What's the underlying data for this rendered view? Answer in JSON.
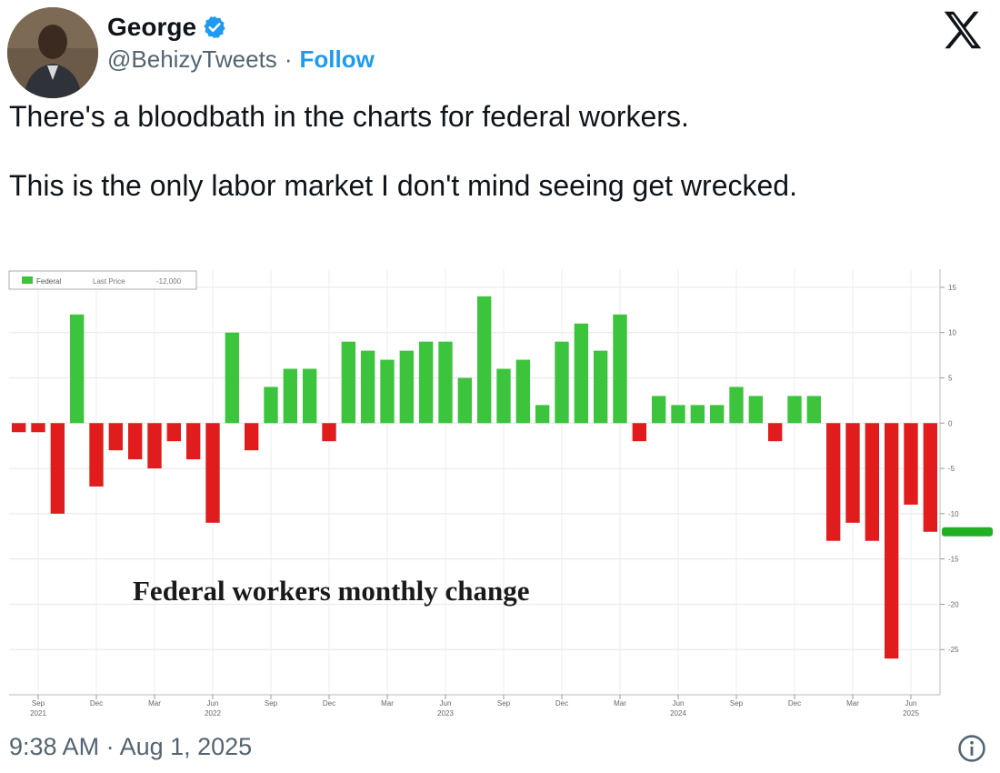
{
  "tweet": {
    "author_name": "George",
    "handle": "@BehizyTweets",
    "separator": "·",
    "follow_label": "Follow",
    "text_line1": "There's a bloodbath in the charts for federal workers.",
    "text_line2": "This is the only labor market I don't mind seeing get wrecked.",
    "timestamp": "9:38 AM · Aug 1, 2025",
    "icons": {
      "verified": "verified-badge-icon",
      "platform": "x-logo-icon",
      "info": "info-icon"
    },
    "colors": {
      "link": "#1d9bf0",
      "verified": "#1d9bf0",
      "muted": "#536471"
    }
  },
  "chart_data": {
    "type": "bar",
    "title": "Federal workers monthly change",
    "legend": {
      "series_name": "Federal",
      "last_price_label": "Last Price",
      "last_price_value": "-12,000",
      "placement": "top-left"
    },
    "values": [
      -1,
      -1,
      -10,
      12,
      -7,
      -3,
      -4,
      -5,
      -2,
      -4,
      -11,
      10,
      -3,
      4,
      6,
      6,
      -2,
      9,
      8,
      7,
      8,
      9,
      9,
      5,
      14,
      6,
      7,
      2,
      9,
      11,
      8,
      12,
      -2,
      3,
      2,
      2,
      2,
      4,
      3,
      -2,
      3,
      3,
      -13,
      -11,
      -13,
      -26,
      -9,
      -12
    ],
    "ylim": [
      -30,
      17
    ],
    "yticks": [
      15,
      10,
      5,
      0,
      -5,
      -10,
      -15,
      -20,
      -25
    ],
    "last_value_marker": -12,
    "xticks": [
      {
        "index": 1,
        "label": "Sep",
        "year": "2021"
      },
      {
        "index": 4,
        "label": "Dec",
        "year": ""
      },
      {
        "index": 7,
        "label": "Mar",
        "year": ""
      },
      {
        "index": 10,
        "label": "Jun",
        "year": "2022"
      },
      {
        "index": 13,
        "label": "Sep",
        "year": ""
      },
      {
        "index": 16,
        "label": "Dec",
        "year": ""
      },
      {
        "index": 19,
        "label": "Mar",
        "year": ""
      },
      {
        "index": 22,
        "label": "Jun",
        "year": "2023"
      },
      {
        "index": 25,
        "label": "Sep",
        "year": ""
      },
      {
        "index": 28,
        "label": "Dec",
        "year": ""
      },
      {
        "index": 31,
        "label": "Mar",
        "year": ""
      },
      {
        "index": 34,
        "label": "Jun",
        "year": "2024"
      },
      {
        "index": 37,
        "label": "Sep",
        "year": ""
      },
      {
        "index": 40,
        "label": "Dec",
        "year": ""
      },
      {
        "index": 43,
        "label": "Mar",
        "year": ""
      },
      {
        "index": 46,
        "label": "Jun",
        "year": "2025"
      }
    ],
    "grid": true,
    "colors": {
      "positive": "#3cc43c",
      "negative": "#e01c1c",
      "marker": "#22b022"
    }
  }
}
